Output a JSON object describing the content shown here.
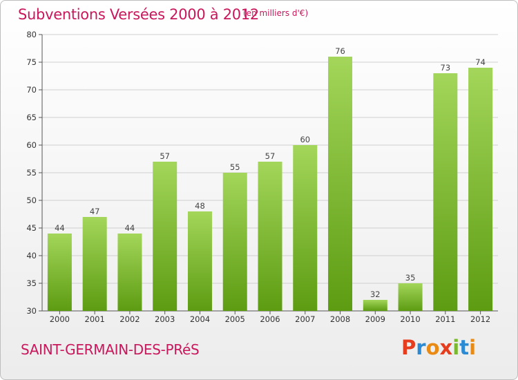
{
  "header": {
    "title": "Subventions Versées 2000 à 2012",
    "unit": "(en milliers d'€)"
  },
  "footer": {
    "commune": "SAINT-GERMAIN-DES-PRéS",
    "logo": "Proxiti"
  },
  "colors": {
    "title": "#c8175b",
    "bar_top": "#a3d65a",
    "bar_bottom": "#5d9c12",
    "grid": "#cfcfcf",
    "logo_letters": [
      "#e63d1f",
      "#2a8ad4",
      "#e98a14",
      "#e63d1f",
      "#7ab82e",
      "#2a8ad4",
      "#e98a14"
    ]
  },
  "chart_data": {
    "type": "bar",
    "title": "Subventions Versées 2000 à 2012",
    "categories": [
      "2000",
      "2001",
      "2002",
      "2003",
      "2004",
      "2005",
      "2006",
      "2007",
      "2008",
      "2009",
      "2010",
      "2011",
      "2012"
    ],
    "values": [
      44,
      47,
      44,
      57,
      48,
      55,
      57,
      60,
      76,
      32,
      35,
      73,
      74
    ],
    "ylim": [
      30,
      80
    ],
    "yticks": [
      30,
      35,
      40,
      45,
      50,
      55,
      60,
      65,
      70,
      75,
      80
    ],
    "grid": true,
    "xlabel": "",
    "ylabel": ""
  }
}
